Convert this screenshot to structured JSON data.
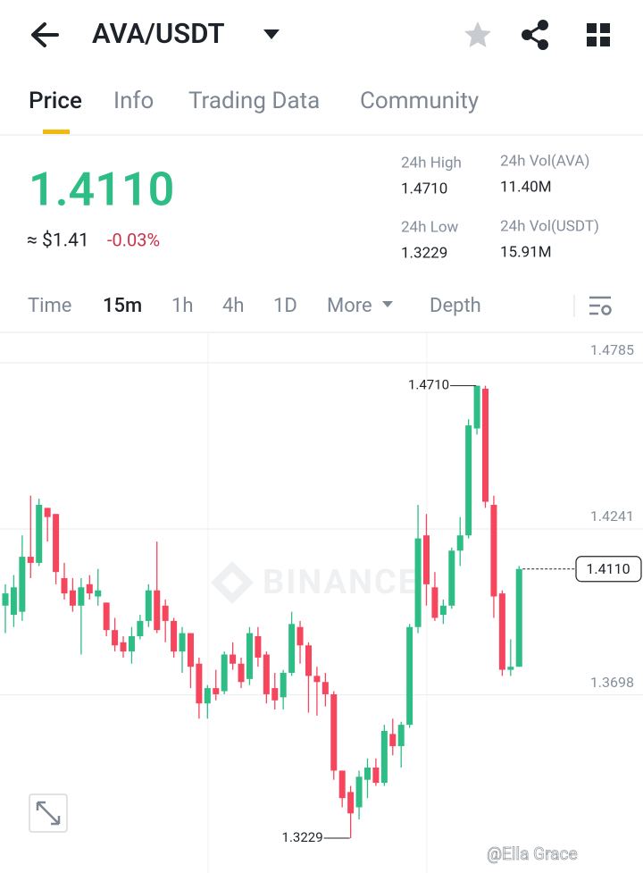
{
  "header": {
    "pair": "AVA/USDT"
  },
  "tabs": [
    "Price",
    "Info",
    "Trading Data",
    "Community"
  ],
  "active_tab": 0,
  "ticker": {
    "price": "1.4110",
    "fiat": "≈ $1.41",
    "change": "-0.03%"
  },
  "stats": [
    {
      "label": "24h High",
      "value": "1.4710"
    },
    {
      "label": "24h Vol(AVA)",
      "value": "11.40M"
    },
    {
      "label": "24h Low",
      "value": "1.3229"
    },
    {
      "label": "24h Vol(USDT)",
      "value": "15.91M"
    }
  ],
  "intervals": [
    "Time",
    "15m",
    "1h",
    "4h",
    "1D",
    "More",
    "Depth"
  ],
  "active_interval": 1,
  "watermark": "BINANCE",
  "credit": "@Ella Grace",
  "chart_data": {
    "type": "candlestick",
    "up_color": "#2ebd85",
    "down_color": "#f6465d",
    "ylim": [
      1.315,
      1.488
    ],
    "yticks": [
      1.4785,
      1.4241,
      1.3698
    ],
    "grid": true,
    "last_price": {
      "value": 1.411,
      "label": "1.4110"
    },
    "annotations": [
      {
        "value": 1.471,
        "label": "1.4710"
      },
      {
        "value": 1.3229,
        "label": "1.3229"
      }
    ],
    "open": [
      1.399,
      1.396,
      1.397,
      1.415,
      1.413,
      1.431,
      1.429,
      1.408,
      1.404,
      1.399,
      1.406,
      1.402,
      1.4,
      1.391,
      1.387,
      1.384,
      1.389,
      1.394,
      1.404,
      1.399,
      1.394,
      1.384,
      1.39,
      1.38,
      1.367,
      1.372,
      1.371,
      1.383,
      1.38,
      1.375,
      1.389,
      1.383,
      1.372,
      1.369,
      1.377,
      1.392,
      1.386,
      1.376,
      1.374,
      1.37,
      1.345,
      1.338,
      1.333,
      1.342,
      1.346,
      1.341,
      1.357,
      1.353,
      1.36,
      1.392,
      1.422,
      1.405,
      1.396,
      1.399,
      1.417,
      1.422,
      1.457,
      1.47,
      1.432,
      1.403,
      1.378,
      1.379
    ],
    "high": [
      1.406,
      1.409,
      1.422,
      1.435,
      1.434,
      1.431,
      1.429,
      1.413,
      1.408,
      1.408,
      1.409,
      1.411,
      1.4,
      1.395,
      1.389,
      1.392,
      1.396,
      1.406,
      1.42,
      1.401,
      1.395,
      1.392,
      1.39,
      1.382,
      1.373,
      1.378,
      1.384,
      1.387,
      1.382,
      1.392,
      1.392,
      1.384,
      1.377,
      1.378,
      1.397,
      1.394,
      1.387,
      1.379,
      1.377,
      1.371,
      1.345,
      1.34,
      1.345,
      1.349,
      1.349,
      1.36,
      1.362,
      1.361,
      1.393,
      1.432,
      1.429,
      1.41,
      1.401,
      1.418,
      1.428,
      1.46,
      1.471,
      1.471,
      1.435,
      1.404,
      1.388,
      1.412
    ],
    "low": [
      1.39,
      1.392,
      1.394,
      1.408,
      1.412,
      1.42,
      1.406,
      1.401,
      1.397,
      1.383,
      1.401,
      1.399,
      1.389,
      1.384,
      1.382,
      1.38,
      1.388,
      1.392,
      1.39,
      1.387,
      1.382,
      1.377,
      1.372,
      1.362,
      1.362,
      1.368,
      1.37,
      1.378,
      1.372,
      1.373,
      1.379,
      1.367,
      1.365,
      1.365,
      1.376,
      1.38,
      1.364,
      1.363,
      1.366,
      1.342,
      1.333,
      1.3229,
      1.329,
      1.336,
      1.34,
      1.34,
      1.35,
      1.346,
      1.359,
      1.39,
      1.399,
      1.394,
      1.393,
      1.398,
      1.412,
      1.421,
      1.455,
      1.431,
      1.395,
      1.376,
      1.376,
      1.379
    ],
    "close": [
      1.403,
      1.405,
      1.415,
      1.413,
      1.432,
      1.428,
      1.41,
      1.403,
      1.399,
      1.405,
      1.403,
      1.404,
      1.391,
      1.386,
      1.384,
      1.389,
      1.394,
      1.404,
      1.391,
      1.394,
      1.384,
      1.39,
      1.379,
      1.367,
      1.372,
      1.37,
      1.383,
      1.38,
      1.374,
      1.39,
      1.382,
      1.37,
      1.368,
      1.377,
      1.393,
      1.386,
      1.376,
      1.374,
      1.37,
      1.345,
      1.336,
      1.331,
      1.343,
      1.346,
      1.341,
      1.358,
      1.353,
      1.36,
      1.392,
      1.421,
      1.406,
      1.395,
      1.399,
      1.417,
      1.422,
      1.458,
      1.471,
      1.433,
      1.402,
      1.378,
      1.379,
      1.411
    ]
  }
}
